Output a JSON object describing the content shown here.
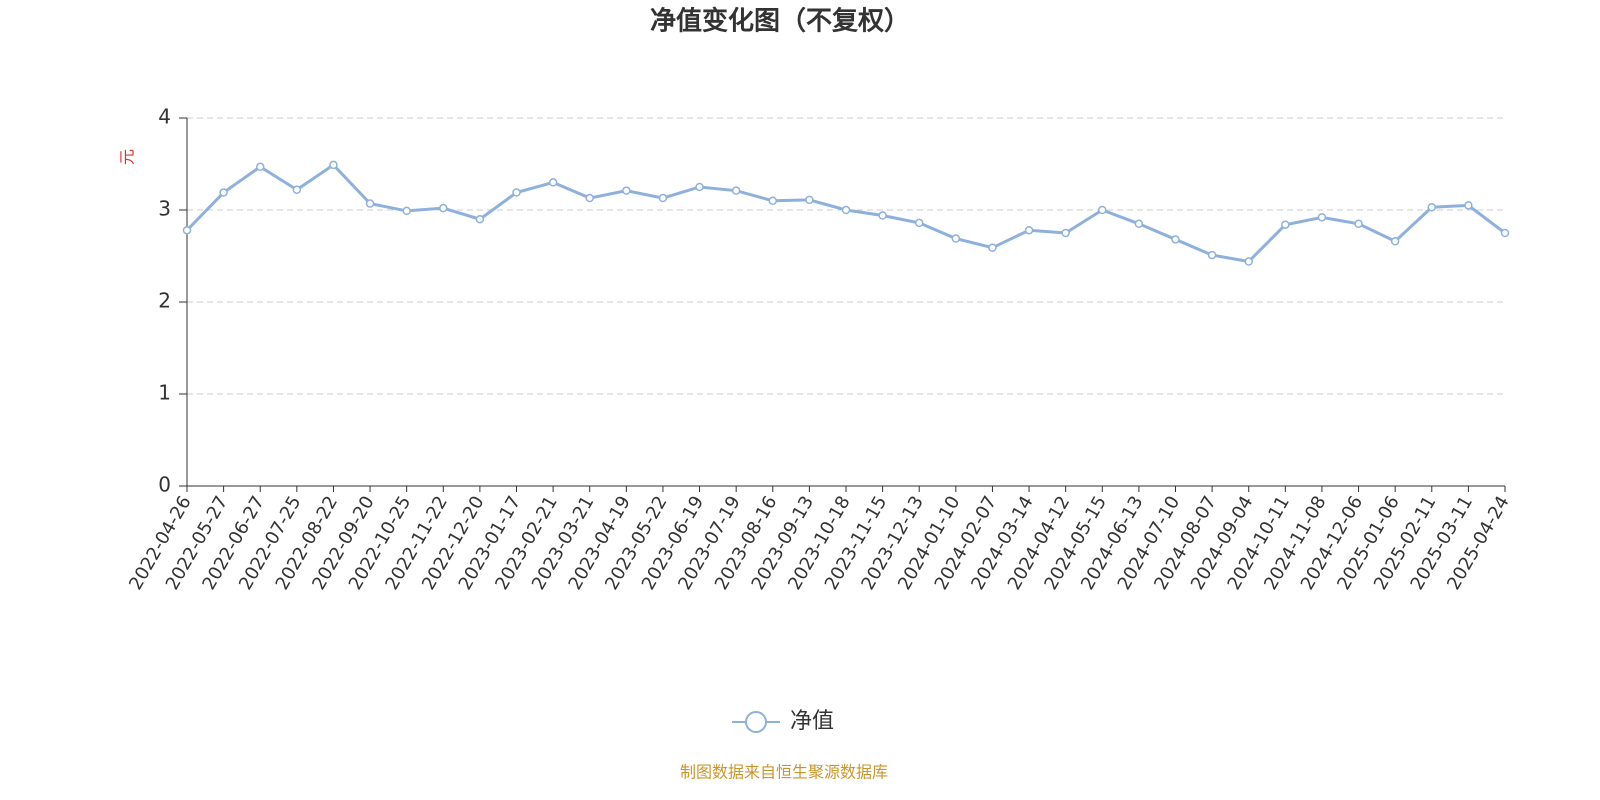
{
  "chart_data": {
    "type": "line",
    "title": "净值变化图（不复权）",
    "y_label": "元",
    "source": "制图数据来自恒生聚源数据库",
    "categories": [
      "2022-04-26",
      "2022-05-27",
      "2022-06-27",
      "2022-07-25",
      "2022-08-22",
      "2022-09-20",
      "2022-10-25",
      "2022-11-22",
      "2022-12-20",
      "2023-01-17",
      "2023-02-21",
      "2023-03-21",
      "2023-04-19",
      "2023-05-22",
      "2023-06-19",
      "2023-07-19",
      "2023-08-16",
      "2023-09-13",
      "2023-10-18",
      "2023-11-15",
      "2023-12-13",
      "2024-01-10",
      "2024-02-07",
      "2024-03-14",
      "2024-04-12",
      "2024-05-15",
      "2024-06-13",
      "2024-07-10",
      "2024-08-07",
      "2024-09-04",
      "2024-10-11",
      "2024-11-08",
      "2024-12-06",
      "2025-01-06",
      "2025-02-11",
      "2025-03-11",
      "2025-04-24"
    ],
    "series": [
      {
        "name": "净值",
        "color": "#8eb0dc",
        "values": [
          2.78,
          3.19,
          3.47,
          3.22,
          3.49,
          3.07,
          2.99,
          3.02,
          2.9,
          3.19,
          3.3,
          3.13,
          3.21,
          3.13,
          3.25,
          3.21,
          3.1,
          3.11,
          3.0,
          2.94,
          2.86,
          2.69,
          2.59,
          2.78,
          2.75,
          3.0,
          2.85,
          2.68,
          2.51,
          2.44,
          2.84,
          2.92,
          2.85,
          2.66,
          3.03,
          3.05,
          2.75
        ]
      }
    ],
    "ylim": [
      0,
      4
    ],
    "yticks": [
      0,
      1,
      2,
      3,
      4
    ],
    "grid": true,
    "legend": "bottom"
  }
}
